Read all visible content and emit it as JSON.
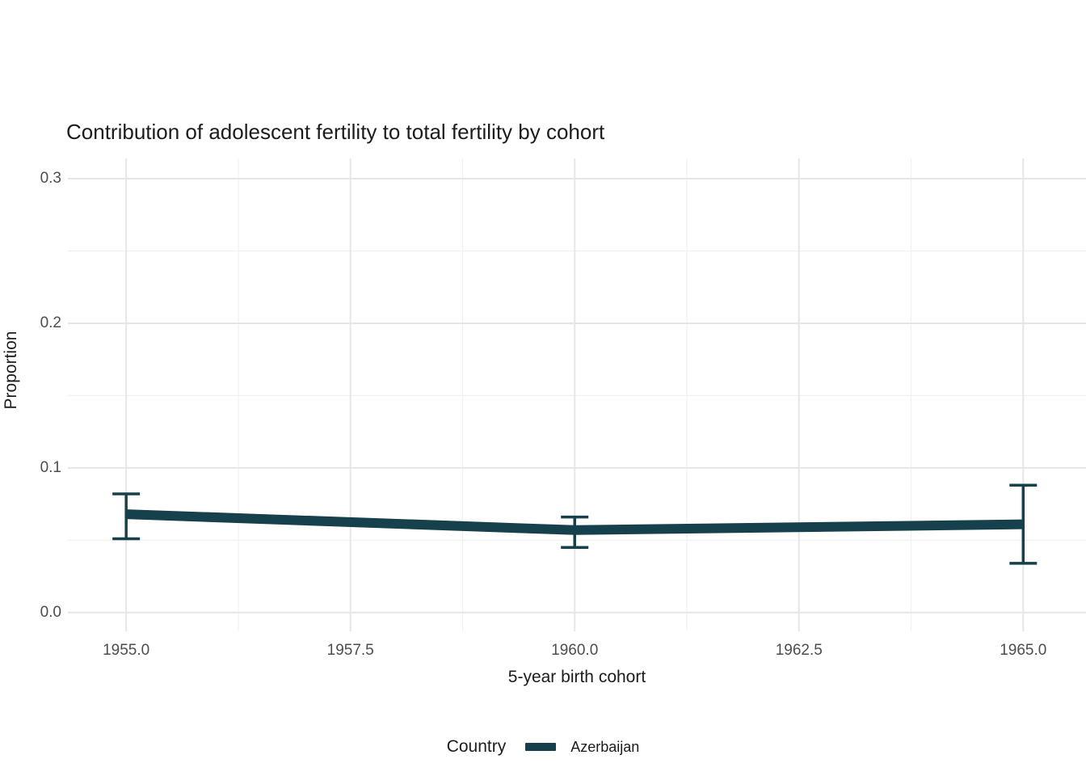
{
  "page": {
    "background": "#ffffff"
  },
  "chart_data": {
    "type": "line",
    "title": "Contribution of adolescent fertility to total fertility by cohort",
    "xlabel": "5-year birth cohort",
    "ylabel": "Proportion",
    "xlim": [
      1954.35,
      1965.7
    ],
    "ylim": [
      -0.013,
      0.314
    ],
    "xticks": [
      1955.0,
      1957.5,
      1960.0,
      1962.5,
      1965.0
    ],
    "xtick_labels": [
      "1955.0",
      "1957.5",
      "1960.0",
      "1962.5",
      "1965.0"
    ],
    "yticks": [
      0.0,
      0.1,
      0.2,
      0.3
    ],
    "ytick_labels": [
      "0.0",
      "0.1",
      "0.2",
      "0.3"
    ],
    "grid": {
      "major": true,
      "minor": true,
      "major_color": "#e6e6e6",
      "minor_color": "#f0f0f0"
    },
    "legend": {
      "title": "Country",
      "position": "bottom",
      "items": [
        {
          "label": "Azerbaijan",
          "color": "#17404d"
        }
      ]
    },
    "series": [
      {
        "name": "Azerbaijan",
        "color": "#17404d",
        "x": [
          1955,
          1960,
          1965
        ],
        "y": [
          0.068,
          0.057,
          0.061
        ],
        "ymin": [
          0.051,
          0.045,
          0.034
        ],
        "ymax": [
          0.082,
          0.066,
          0.088
        ],
        "error_bars": true
      }
    ]
  }
}
